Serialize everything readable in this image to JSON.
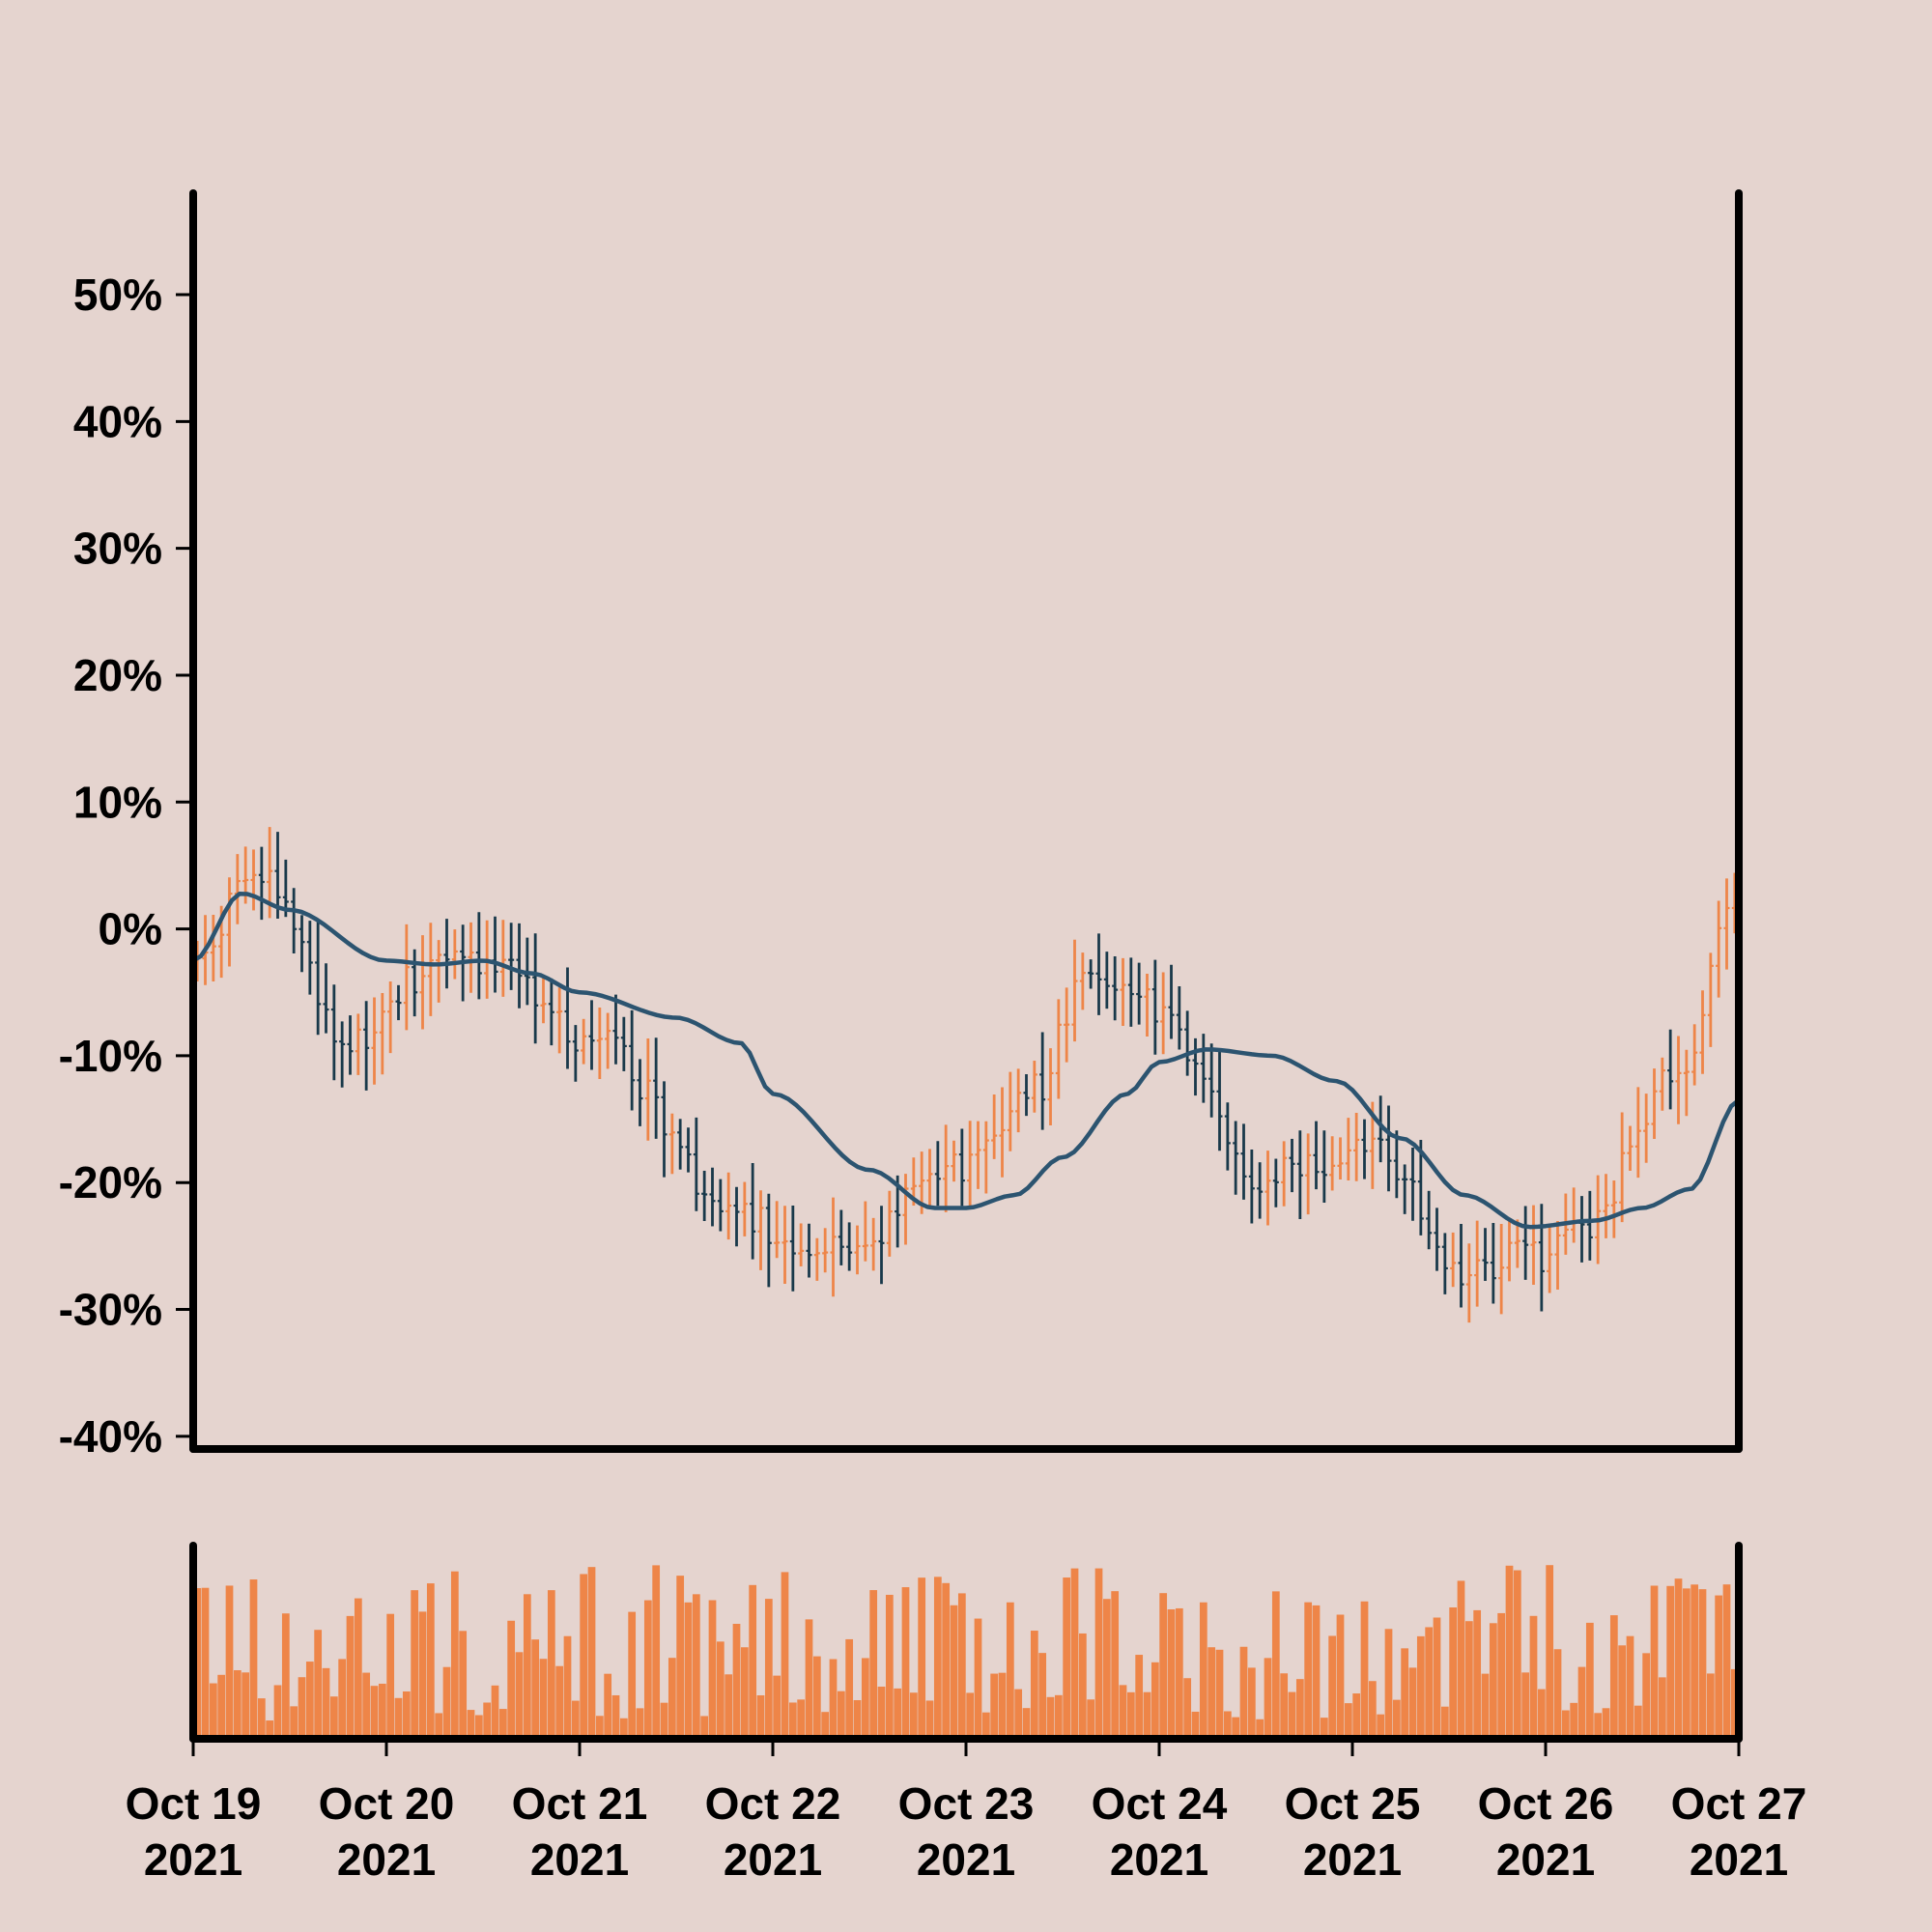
{
  "chart_data": {
    "type": "ohlc",
    "title": "",
    "xlabel": "",
    "ylabel": "",
    "y_unit": "%",
    "ylim": [
      -41,
      58
    ],
    "y_ticks": [
      -40,
      -30,
      -20,
      -10,
      0,
      10,
      20,
      30,
      40,
      50
    ],
    "y_tick_labels": [
      "-40%",
      "-30%",
      "-20%",
      "-10%",
      "0%",
      "10%",
      "20%",
      "30%",
      "40%",
      "50%"
    ],
    "x_range": [
      "2021-10-19",
      "2021-10-27"
    ],
    "x_ticks": [
      {
        "line1": "Oct 19",
        "line2": "2021"
      },
      {
        "line1": "Oct 20",
        "line2": "2021"
      },
      {
        "line1": "Oct 21",
        "line2": "2021"
      },
      {
        "line1": "Oct 22",
        "line2": "2021"
      },
      {
        "line1": "Oct 23",
        "line2": "2021"
      },
      {
        "line1": "Oct 24",
        "line2": "2021"
      },
      {
        "line1": "Oct 25",
        "line2": "2021"
      },
      {
        "line1": "Oct 26",
        "line2": "2021"
      },
      {
        "line1": "Oct 27",
        "line2": "2021"
      }
    ],
    "bar_interval_hours": 1,
    "price_anchors": [
      {
        "t": "2021-10-19 00:00",
        "v": -3
      },
      {
        "t": "2021-10-19 08:00",
        "v": 5
      },
      {
        "t": "2021-10-19 19:00",
        "v": -9
      },
      {
        "t": "2021-10-20 06:00",
        "v": -3
      },
      {
        "t": "2021-10-20 14:00",
        "v": -3
      },
      {
        "t": "2021-10-21 02:00",
        "v": -9
      },
      {
        "t": "2021-10-21 20:00",
        "v": -23
      },
      {
        "t": "2021-10-22 10:00",
        "v": -26
      },
      {
        "t": "2021-10-22 20:00",
        "v": -20
      },
      {
        "t": "2021-10-23 08:00",
        "v": -13
      },
      {
        "t": "2021-10-23 16:00",
        "v": -3
      },
      {
        "t": "2021-10-24 00:00",
        "v": -6
      },
      {
        "t": "2021-10-24 12:00",
        "v": -20
      },
      {
        "t": "2021-10-25 02:00",
        "v": -17
      },
      {
        "t": "2021-10-25 14:00",
        "v": -27
      },
      {
        "t": "2021-10-25 22:00",
        "v": -26
      },
      {
        "t": "2021-10-26 04:00",
        "v": -24
      },
      {
        "t": "2021-10-26 16:00",
        "v": -12
      },
      {
        "t": "2021-10-27 00:00",
        "v": 4
      }
    ],
    "moving_average": [
      {
        "t": "2021-10-19 00:00",
        "v": -2.5
      },
      {
        "t": "2021-10-19 06:00",
        "v": 2.8
      },
      {
        "t": "2021-10-19 12:00",
        "v": 1.5
      },
      {
        "t": "2021-10-20 00:00",
        "v": -2.5
      },
      {
        "t": "2021-10-20 06:00",
        "v": -2.8
      },
      {
        "t": "2021-10-20 12:00",
        "v": -2.5
      },
      {
        "t": "2021-10-20 18:00",
        "v": -3.5
      },
      {
        "t": "2021-10-21 00:00",
        "v": -5.0
      },
      {
        "t": "2021-10-21 12:00",
        "v": -7.0
      },
      {
        "t": "2021-10-21 20:00",
        "v": -9.0
      },
      {
        "t": "2021-10-22 00:00",
        "v": -13.0
      },
      {
        "t": "2021-10-22 12:00",
        "v": -19.0
      },
      {
        "t": "2021-10-22 20:00",
        "v": -22.0
      },
      {
        "t": "2021-10-23 00:00",
        "v": -22.0
      },
      {
        "t": "2021-10-23 06:00",
        "v": -21.0
      },
      {
        "t": "2021-10-23 12:00",
        "v": -18.0
      },
      {
        "t": "2021-10-23 20:00",
        "v": -13.0
      },
      {
        "t": "2021-10-24 00:00",
        "v": -10.5
      },
      {
        "t": "2021-10-24 06:00",
        "v": -9.5
      },
      {
        "t": "2021-10-24 14:00",
        "v": -10.0
      },
      {
        "t": "2021-10-24 22:00",
        "v": -12.0
      },
      {
        "t": "2021-10-25 06:00",
        "v": -16.5
      },
      {
        "t": "2021-10-25 14:00",
        "v": -21.0
      },
      {
        "t": "2021-10-25 22:00",
        "v": -23.5
      },
      {
        "t": "2021-10-26 06:00",
        "v": -23.0
      },
      {
        "t": "2021-10-26 12:00",
        "v": -22.0
      },
      {
        "t": "2021-10-26 18:00",
        "v": -20.5
      },
      {
        "t": "2021-10-27 00:00",
        "v": -13.5
      }
    ],
    "volume": {
      "shown": true,
      "axis_labels": false
    }
  },
  "colors": {
    "background": "#e5d4cf",
    "up_bar": "#ee8548",
    "down_bar": "#19394a",
    "moving_average": "#2c5470",
    "volume": "#ee8548",
    "axes": "#000000"
  }
}
